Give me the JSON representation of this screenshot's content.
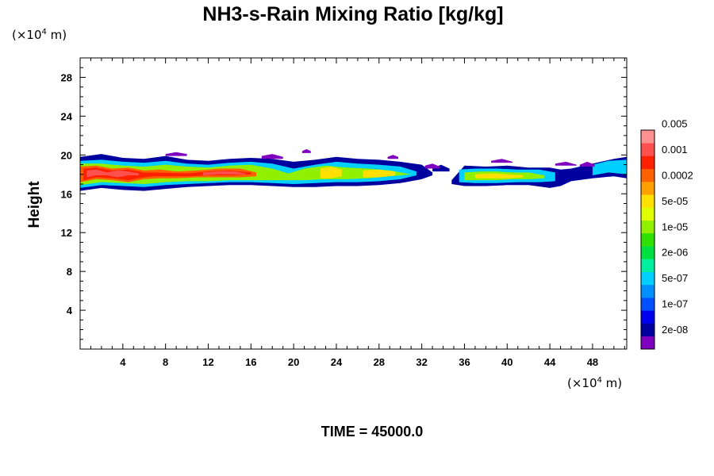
{
  "chart_data": {
    "type": "heatmap",
    "title": "NH3-s-Rain Mixing Ratio [kg/kg]",
    "ylabel": "Height",
    "xlabel": "",
    "x_unit": "(×10",
    "x_unit_exp": "4",
    "x_unit_suffix": " m)",
    "y_unit": "(×10",
    "y_unit_exp": "4",
    "y_unit_suffix": " m)",
    "xlim": [
      0,
      51.2
    ],
    "ylim": [
      0,
      30
    ],
    "x_ticks": [
      4,
      8,
      12,
      16,
      20,
      24,
      28,
      32,
      36,
      40,
      44,
      48
    ],
    "y_ticks": [
      4,
      8,
      12,
      16,
      20,
      24,
      28
    ],
    "time_label": "TIME = 45000.0",
    "colorbar": {
      "colors": [
        "#7f00bf",
        "#00009f",
        "#0000ef",
        "#0050ff",
        "#0090ff",
        "#00d0ff",
        "#00f09f",
        "#00e040",
        "#30e000",
        "#90f000",
        "#e0ff00",
        "#ffe000",
        "#ffa000",
        "#ff6000",
        "#ff2000",
        "#ff5050",
        "#ff9090"
      ],
      "labels": [
        "2e-08",
        "1e-07",
        "5e-07",
        "2e-06",
        "1e-05",
        "5e-05",
        "0.0002",
        "0.001",
        "0.005"
      ]
    },
    "regions": [
      {
        "level": 1,
        "x": [
          0,
          2,
          4,
          6,
          8,
          10,
          12,
          14,
          16,
          18,
          20,
          22,
          24,
          26,
          28,
          30,
          32,
          33
        ],
        "top": [
          19.8,
          20.1,
          19.7,
          19.6,
          19.9,
          19.5,
          19.4,
          19.6,
          19.7,
          19.6,
          19.3,
          19.5,
          19.8,
          19.6,
          19.5,
          19.3,
          19.0,
          18.2
        ],
        "bottom": [
          16.3,
          16.6,
          16.4,
          16.3,
          16.5,
          16.7,
          16.8,
          16.9,
          16.9,
          16.8,
          16.7,
          16.7,
          16.8,
          16.8,
          16.9,
          17.1,
          17.5,
          17.9
        ]
      },
      {
        "level": 5,
        "x": [
          0,
          2,
          4,
          6,
          8,
          10,
          12,
          14,
          16,
          18,
          20,
          22,
          24,
          26,
          28,
          30,
          31.5
        ],
        "top": [
          19.4,
          19.5,
          19.3,
          19.2,
          19.4,
          19.1,
          19.0,
          19.2,
          19.3,
          19.1,
          18.6,
          19.0,
          19.3,
          19.1,
          19.0,
          18.8,
          18.3
        ],
        "bottom": [
          16.6,
          16.9,
          16.8,
          16.7,
          16.9,
          17.0,
          17.1,
          17.2,
          17.2,
          17.1,
          17.0,
          17.1,
          17.2,
          17.2,
          17.3,
          17.5,
          17.9
        ]
      },
      {
        "level": 9,
        "x": [
          0,
          2,
          4,
          6,
          8,
          10,
          12,
          14,
          16,
          18,
          19.5,
          21,
          23,
          25,
          27,
          29,
          31
        ],
        "top": [
          19.1,
          19.1,
          18.9,
          18.8,
          19.0,
          18.8,
          18.7,
          18.9,
          19.0,
          18.6,
          18.1,
          18.6,
          18.9,
          18.7,
          18.6,
          18.4,
          18.0
        ],
        "bottom": [
          16.9,
          17.2,
          17.1,
          17.0,
          17.2,
          17.3,
          17.3,
          17.4,
          17.4,
          17.4,
          17.4,
          17.4,
          17.5,
          17.5,
          17.6,
          17.8,
          18.0
        ]
      },
      {
        "level": 13,
        "x": [
          0,
          1.5,
          3,
          4.5,
          6,
          7.5,
          9,
          11,
          13,
          15,
          16.5
        ],
        "top": [
          18.8,
          18.9,
          18.6,
          18.7,
          18.4,
          18.5,
          18.3,
          18.4,
          18.6,
          18.6,
          18.2
        ],
        "bottom": [
          17.2,
          17.5,
          17.4,
          17.2,
          17.5,
          17.6,
          17.6,
          17.7,
          17.7,
          17.7,
          17.8
        ]
      },
      {
        "level": 14,
        "x": [
          0.3,
          1.5,
          3,
          4.5,
          6,
          7,
          10,
          12,
          14,
          16
        ],
        "top": [
          18.6,
          18.7,
          18.4,
          18.5,
          18.2,
          18.2,
          18.1,
          18.3,
          18.4,
          18.2
        ],
        "bottom": [
          17.4,
          17.7,
          17.6,
          17.4,
          17.7,
          17.8,
          17.8,
          17.9,
          17.9,
          18.0
        ]
      },
      {
        "level": 15,
        "x": [
          0.6,
          1.5,
          2.5,
          3.5,
          4.5,
          5.5
        ],
        "top": [
          18.4,
          18.5,
          18.2,
          18.4,
          18.3,
          18.1
        ],
        "bottom": [
          17.7,
          17.9,
          17.9,
          17.7,
          17.9,
          17.9
        ]
      },
      {
        "level": 15,
        "x": [
          11.5,
          13,
          14.5,
          15.5
        ],
        "top": [
          18.2,
          18.3,
          18.3,
          18.1
        ],
        "bottom": [
          17.9,
          18.0,
          18.0,
          18.0
        ]
      },
      {
        "level": 11,
        "x": [
          22.5,
          23.5,
          24.5
        ],
        "top": [
          18.6,
          18.8,
          18.5
        ],
        "bottom": [
          17.6,
          17.6,
          17.8
        ]
      },
      {
        "level": 11,
        "x": [
          26.5,
          28,
          29.5
        ],
        "top": [
          18.4,
          18.5,
          18.3
        ],
        "bottom": [
          17.7,
          17.7,
          17.9
        ]
      },
      {
        "level": 1,
        "x": [
          34.8,
          36,
          38,
          40,
          42,
          44,
          45,
          46,
          48,
          50,
          51.2
        ],
        "top": [
          17.4,
          18.9,
          18.8,
          18.9,
          18.7,
          18.7,
          18.5,
          18.6,
          19.1,
          19.6,
          19.8
        ],
        "bottom": [
          17.0,
          16.8,
          16.8,
          16.9,
          16.9,
          16.6,
          16.8,
          17.3,
          17.6,
          17.8,
          17.6
        ]
      },
      {
        "level": 5,
        "x": [
          35.5,
          37,
          39,
          41,
          43,
          44.5
        ],
        "top": [
          18.5,
          18.6,
          18.6,
          18.5,
          18.5,
          18.2
        ],
        "bottom": [
          17.2,
          17.1,
          17.1,
          17.2,
          17.2,
          17.3
        ]
      },
      {
        "level": 9,
        "x": [
          36,
          37.5,
          39,
          40.5,
          42,
          43.5
        ],
        "top": [
          18.2,
          18.3,
          18.3,
          18.2,
          18.2,
          17.9
        ],
        "bottom": [
          17.4,
          17.4,
          17.4,
          17.5,
          17.5,
          17.6
        ]
      },
      {
        "level": 11,
        "x": [
          37,
          38.5,
          40,
          41.5
        ],
        "top": [
          18.0,
          18.1,
          18.0,
          17.9
        ],
        "bottom": [
          17.6,
          17.6,
          17.6,
          17.7
        ]
      },
      {
        "level": 5,
        "x": [
          48,
          49.5,
          51.2
        ],
        "top": [
          19.0,
          19.4,
          19.5
        ],
        "bottom": [
          17.9,
          18.2,
          18.0
        ]
      },
      {
        "level": 1,
        "x": [
          33,
          33.8,
          34.6
        ],
        "top": [
          18.6,
          19.0,
          18.6
        ],
        "bottom": [
          18.3,
          18.3,
          18.3
        ]
      },
      {
        "level": 0,
        "x": [
          20.8,
          21.2,
          21.6
        ],
        "top": [
          20.4,
          20.6,
          20.4
        ],
        "bottom": [
          20.2,
          20.2,
          20.2
        ]
      },
      {
        "level": 0,
        "x": [
          28.8,
          29.3,
          29.8
        ],
        "top": [
          19.8,
          20.0,
          19.8
        ],
        "bottom": [
          19.6,
          19.6,
          19.6
        ]
      },
      {
        "level": 0,
        "x": [
          32.3,
          33,
          33.7
        ],
        "top": [
          18.9,
          19.1,
          18.8
        ],
        "bottom": [
          18.6,
          18.6,
          18.6
        ]
      },
      {
        "level": 0,
        "x": [
          38.5,
          39.5,
          40.5
        ],
        "top": [
          19.4,
          19.6,
          19.3
        ],
        "bottom": [
          19.2,
          19.2,
          19.2
        ]
      },
      {
        "level": 0,
        "x": [
          44.5,
          45.5,
          46.5
        ],
        "top": [
          19.1,
          19.3,
          19.0
        ],
        "bottom": [
          18.9,
          18.9,
          18.9
        ]
      },
      {
        "level": 0,
        "x": [
          46.8,
          47.5,
          48.2
        ],
        "top": [
          19.0,
          19.3,
          19.0
        ],
        "bottom": [
          18.8,
          18.8,
          18.8
        ]
      },
      {
        "level": 0,
        "x": [
          8,
          9,
          10
        ],
        "top": [
          20.1,
          20.3,
          20.1
        ],
        "bottom": [
          19.9,
          19.9,
          19.9
        ]
      },
      {
        "level": 0,
        "x": [
          17,
          18,
          19
        ],
        "top": [
          19.9,
          20.1,
          19.8
        ],
        "bottom": [
          19.6,
          19.6,
          19.6
        ]
      }
    ]
  }
}
